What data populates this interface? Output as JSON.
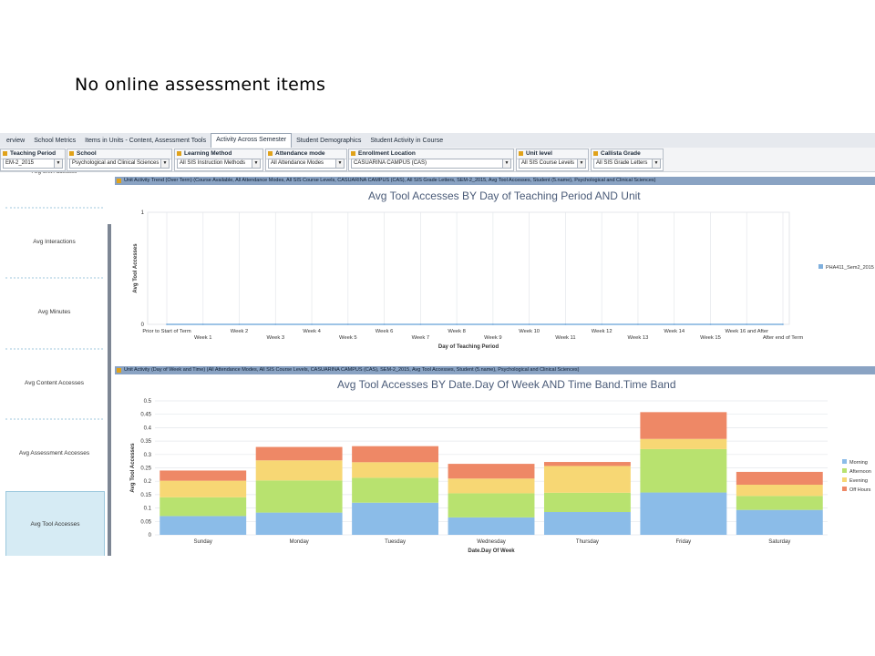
{
  "slide": {
    "title": "No online assessment items"
  },
  "tabs": [
    "erview",
    "School Metrics",
    "Items in Units - Content, Assessment Tools",
    "Activity Across Semester",
    "Student Demographics",
    "Student Activity in Course"
  ],
  "active_tab": "Activity Across Semester",
  "filters": [
    {
      "label": "Teaching Period",
      "value": "EM-2_2015"
    },
    {
      "label": "School",
      "value": "Psychological and Clinical Sciences"
    },
    {
      "label": "Learning Method",
      "value": "All SIS Instruction Methods"
    },
    {
      "label": "Attendance mode",
      "value": "All Attendance Modes"
    },
    {
      "label": "Enrollment Location",
      "value": "CASUARINA CAMPUS (CAS)"
    },
    {
      "label": "Unit level",
      "value": "All SIS Course Levels"
    },
    {
      "label": "Callista Grade",
      "value": "All SIS Grade Letters"
    }
  ],
  "nav": {
    "partial_top": "Avg Unit Accesses",
    "items": [
      "Avg Interactions",
      "Avg Minutes",
      "Avg Content Accesses",
      "Avg Assessment Accesses",
      "Avg Tool Accesses"
    ],
    "selected": "Avg Tool Accesses"
  },
  "panel1": {
    "header": "Unit Activity Trend (Over Term)  (Course Available, All Attendance Modes, All SIS Course Levels, CASUARINA CAMPUS (CAS), All SIS Grade Letters, SEM-2_2015, Avg Tool Accesses, Student (5.name), Psychological and Clinical Sciences)"
  },
  "panel2": {
    "header": "Unit Activity (Day of Week and Time)  (All Attendance Modes, All SIS Course Levels, CASUARINA CAMPUS (CAS), SEM-2_2015, Avg Tool Accesses, Student (5.name), Psychological and Clinical Sciences)"
  },
  "chart_data": [
    {
      "type": "line",
      "title": "Avg Tool Accesses BY Day of Teaching Period AND Unit",
      "xlabel": "Day of Teaching Period",
      "ylabel": "Avg Tool Accesses",
      "ylim": [
        0,
        1
      ],
      "yticks": [
        "0",
        "1"
      ],
      "categories": [
        "Prior to Start of Term",
        "Week 1",
        "Week 2",
        "Week 3",
        "Week 4",
        "Week 5",
        "Week 6",
        "Week 7",
        "Week 8",
        "Week 9",
        "Week 10",
        "Week 11",
        "Week 12",
        "Week 13",
        "Week 14",
        "Week 15",
        "Week 16 and After",
        "After end of Term"
      ],
      "series": [
        {
          "name": "PHA411_Sem2_2015",
          "color": "#7fb0de",
          "values": [
            0,
            0,
            0,
            0,
            0,
            0,
            0,
            0,
            0,
            0,
            0,
            0,
            0,
            0,
            0,
            0,
            0,
            0
          ]
        }
      ],
      "grid": true,
      "legend": "right"
    },
    {
      "type": "bar",
      "stacked": true,
      "title": "Avg Tool Accesses BY Date.Day Of Week AND Time Band.Time Band",
      "xlabel": "Date.Day Of Week",
      "ylabel": "Avg Tool Accesses",
      "ylim": [
        0,
        0.5
      ],
      "yticks": [
        "0",
        "0.05",
        "0.1",
        "0.15",
        "0.2",
        "0.25",
        "0.3",
        "0.35",
        "0.4",
        "0.45",
        "0.5"
      ],
      "categories": [
        "Sunday",
        "Monday",
        "Tuesday",
        "Wednesday",
        "Thursday",
        "Friday",
        "Saturday"
      ],
      "series": [
        {
          "name": "Morning",
          "color": "#8bbce8",
          "values": [
            0.07,
            0.083,
            0.12,
            0.065,
            0.085,
            0.158,
            0.093
          ]
        },
        {
          "name": "Afternoon",
          "color": "#b8e26f",
          "values": [
            0.07,
            0.12,
            0.093,
            0.09,
            0.072,
            0.162,
            0.052
          ]
        },
        {
          "name": "Evening",
          "color": "#f7d774",
          "values": [
            0.062,
            0.075,
            0.058,
            0.055,
            0.1,
            0.038,
            0.042
          ]
        },
        {
          "name": "Off Hours",
          "color": "#ee8866",
          "values": [
            0.038,
            0.05,
            0.06,
            0.055,
            0.015,
            0.1,
            0.048
          ]
        }
      ],
      "grid": true,
      "legend": "right"
    }
  ]
}
